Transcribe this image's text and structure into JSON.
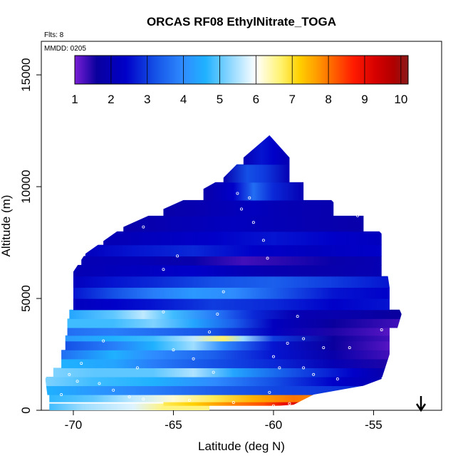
{
  "chart_data": {
    "type": "heatmap",
    "title": "ORCAS RF08 EthylNitrate_TOGA",
    "flights_note": "Flts: 8",
    "date_note": "MMDD: 0205",
    "xlabel": "Latitude (deg N)",
    "ylabel": "Altitude (m)",
    "xlim": [
      -71.6,
      -51.6
    ],
    "ylim": [
      0,
      16500
    ],
    "x_ticks": [
      "-70",
      "-65",
      "-60",
      "-55"
    ],
    "y_ticks": [
      "0",
      "5000",
      "10000",
      "15000"
    ],
    "x_tick_values": [
      -70,
      -65,
      -60,
      -55
    ],
    "y_tick_values": [
      0,
      5000,
      10000,
      15000
    ],
    "colorbar": {
      "min": 1,
      "max": 10.2,
      "ticks": [
        "1",
        "2",
        "3",
        "4",
        "5",
        "6",
        "7",
        "8",
        "9",
        "10"
      ],
      "colors": [
        "#7a1fd6",
        "#0a009e",
        "#0000c8",
        "#1450e6",
        "#2f8cff",
        "#1fb1ff",
        "#8fd8ff",
        "#ffffff",
        "#fff26b",
        "#ffd000",
        "#ff9a00",
        "#ff5a00",
        "#ff1a00",
        "#d60000",
        "#b00000",
        "#8b1a1a"
      ],
      "stops": [
        1,
        1.6,
        2.4,
        3.2,
        4.0,
        4.6,
        5.3,
        6.0,
        6.7,
        7.2,
        7.7,
        8.2,
        8.7,
        9.3,
        9.8,
        10.2
      ]
    },
    "field_envelope": [
      [
        -71.2,
        0
      ],
      [
        -71.4,
        1400
      ],
      [
        -70.6,
        2800
      ],
      [
        -70.2,
        4500
      ],
      [
        -70.0,
        6200
      ],
      [
        -69.4,
        7000
      ],
      [
        -67.5,
        8200
      ],
      [
        -64.5,
        9400
      ],
      [
        -62.5,
        10400
      ],
      [
        -61.5,
        11300
      ],
      [
        -60.2,
        12300
      ],
      [
        -58.8,
        10900
      ],
      [
        -57.0,
        9300
      ],
      [
        -55.5,
        8700
      ],
      [
        -54.6,
        7900
      ],
      [
        -54.2,
        5500
      ],
      [
        -53.6,
        4300
      ],
      [
        -54.2,
        2500
      ],
      [
        -54.6,
        1400
      ],
      [
        -55.5,
        1100
      ],
      [
        -58.0,
        700
      ],
      [
        -59.0,
        250
      ],
      [
        -63.0,
        0
      ]
    ],
    "bands": [
      {
        "y0": 0,
        "y1": 300,
        "points": [
          [
            -71.2,
            4.8
          ],
          [
            -69.5,
            5.4
          ],
          [
            -67,
            5.8
          ],
          [
            -65.5,
            6.6
          ],
          [
            -63.2,
            6.6
          ]
        ]
      },
      {
        "y0": 220,
        "y1": 380,
        "points": [
          [
            -65.5,
            6.8
          ],
          [
            -64,
            7.2
          ],
          [
            -62,
            7.9
          ],
          [
            -60.5,
            8.3
          ],
          [
            -59.5,
            9.0
          ],
          [
            -58.3,
            9.4
          ],
          [
            -57.2,
            8.3
          ]
        ]
      },
      {
        "y0": 380,
        "y1": 700,
        "points": [
          [
            -71.2,
            4.7
          ],
          [
            -69,
            5.0
          ],
          [
            -67,
            5.6
          ],
          [
            -65,
            6.2
          ],
          [
            -63,
            6.8
          ],
          [
            -61,
            7.5
          ],
          [
            -59,
            8.0
          ],
          [
            -57.5,
            7.8
          ],
          [
            -56.6,
            7.2
          ]
        ]
      },
      {
        "y0": 700,
        "y1": 1100,
        "points": [
          [
            -71.4,
            4.6
          ],
          [
            -69,
            4.2
          ],
          [
            -66,
            3.8
          ],
          [
            -63,
            3.4
          ],
          [
            -60,
            3.1
          ],
          [
            -58,
            3.0
          ],
          [
            -55.5,
            2.8
          ]
        ]
      },
      {
        "y0": 1100,
        "y1": 1500,
        "points": [
          [
            -71.4,
            5.2
          ],
          [
            -69,
            4.8
          ],
          [
            -66,
            4.6
          ],
          [
            -63,
            4.0
          ],
          [
            -60,
            3.2
          ],
          [
            -57,
            2.4
          ],
          [
            -54.6,
            2.0
          ]
        ]
      },
      {
        "y0": 1500,
        "y1": 1900,
        "points": [
          [
            -71,
            5.2
          ],
          [
            -69,
            5.0
          ],
          [
            -66,
            5.0
          ],
          [
            -64,
            5.5
          ],
          [
            -62,
            4.4
          ],
          [
            -59,
            3.2
          ],
          [
            -56,
            2.4
          ],
          [
            -54.3,
            1.8
          ]
        ]
      },
      {
        "y0": 1900,
        "y1": 2300,
        "points": [
          [
            -70.6,
            4.6
          ],
          [
            -68,
            4.4
          ],
          [
            -66,
            3.8
          ],
          [
            -63,
            3.2
          ],
          [
            -60,
            2.8
          ],
          [
            -57,
            2.0
          ],
          [
            -54.2,
            1.5
          ]
        ]
      },
      {
        "y0": 2300,
        "y1": 2700,
        "points": [
          [
            -70.6,
            3.6
          ],
          [
            -68,
            4.6
          ],
          [
            -66,
            4.0
          ],
          [
            -63,
            3.4
          ],
          [
            -60,
            2.6
          ],
          [
            -57,
            1.8
          ],
          [
            -54.2,
            1.3
          ]
        ]
      },
      {
        "y0": 2700,
        "y1": 3100,
        "points": [
          [
            -70.4,
            3.2
          ],
          [
            -68,
            3.8
          ],
          [
            -66,
            4.6
          ],
          [
            -64,
            5.4
          ],
          [
            -62.5,
            4.0
          ],
          [
            -60,
            2.6
          ],
          [
            -57,
            1.6
          ],
          [
            -54.2,
            1.2
          ]
        ]
      },
      {
        "y0": 3100,
        "y1": 3350,
        "points": [
          [
            -70.4,
            4.2
          ],
          [
            -68,
            4.6
          ],
          [
            -66,
            4.8
          ],
          [
            -64,
            5.6
          ],
          [
            -62.5,
            6.7
          ],
          [
            -61.5,
            5.4
          ],
          [
            -60,
            3.0
          ],
          [
            -57,
            1.6
          ],
          [
            -54.2,
            1.3
          ]
        ]
      },
      {
        "y0": 3350,
        "y1": 3700,
        "points": [
          [
            -70.3,
            3.6
          ],
          [
            -68,
            3.8
          ],
          [
            -66,
            3.6
          ],
          [
            -63,
            3.2
          ],
          [
            -60,
            2.2
          ],
          [
            -57,
            1.5
          ],
          [
            -54.2,
            1.2
          ]
        ]
      },
      {
        "y0": 3700,
        "y1": 4100,
        "points": [
          [
            -70.3,
            4.8
          ],
          [
            -68,
            4.8
          ],
          [
            -66,
            5.2
          ],
          [
            -64,
            4.4
          ],
          [
            -62,
            3.4
          ],
          [
            -60,
            2.2
          ],
          [
            -57,
            1.6
          ],
          [
            -53.6,
            1.3
          ]
        ]
      },
      {
        "y0": 4100,
        "y1": 4500,
        "points": [
          [
            -70.2,
            4.4
          ],
          [
            -68,
            5.0
          ],
          [
            -66.5,
            5.6
          ],
          [
            -65,
            4.8
          ],
          [
            -63,
            3.8
          ],
          [
            -61,
            2.8
          ],
          [
            -59,
            2.0
          ],
          [
            -56,
            1.8
          ],
          [
            -53.6,
            1.6
          ]
        ]
      },
      {
        "y0": 4500,
        "y1": 5000,
        "points": [
          [
            -70.0,
            2.2
          ],
          [
            -68,
            2.4
          ],
          [
            -66,
            2.6
          ],
          [
            -63,
            3.0
          ],
          [
            -60,
            2.8
          ],
          [
            -57,
            2.4
          ],
          [
            -54.2,
            2.6
          ]
        ]
      },
      {
        "y0": 5000,
        "y1": 5500,
        "points": [
          [
            -70.0,
            2.6
          ],
          [
            -68,
            3.2
          ],
          [
            -66,
            3.8
          ],
          [
            -64,
            4.2
          ],
          [
            -62,
            4.0
          ],
          [
            -60,
            3.4
          ],
          [
            -57,
            2.6
          ],
          [
            -54.2,
            2.4
          ]
        ]
      },
      {
        "y0": 5500,
        "y1": 6000,
        "points": [
          [
            -70.0,
            2.2
          ],
          [
            -68,
            2.6
          ],
          [
            -66,
            2.8
          ],
          [
            -63,
            3.2
          ],
          [
            -60,
            3.4
          ],
          [
            -57,
            3.0
          ],
          [
            -54.2,
            2.6
          ]
        ]
      },
      {
        "y0": 6000,
        "y1": 6500,
        "points": [
          [
            -70.0,
            2.0
          ],
          [
            -67,
            2.2
          ],
          [
            -64,
            2.4
          ],
          [
            -61,
            2.0
          ],
          [
            -58,
            1.8
          ],
          [
            -54.6,
            2.0
          ]
        ]
      },
      {
        "y0": 6500,
        "y1": 6900,
        "points": [
          [
            -69.6,
            2.0
          ],
          [
            -67,
            2.1
          ],
          [
            -64,
            1.8
          ],
          [
            -61.5,
            1.3
          ],
          [
            -60,
            1.4
          ],
          [
            -57,
            1.8
          ],
          [
            -54.6,
            2.0
          ]
        ]
      },
      {
        "y0": 6900,
        "y1": 7400,
        "points": [
          [
            -69.4,
            2.2
          ],
          [
            -67,
            2.6
          ],
          [
            -64,
            2.8
          ],
          [
            -61,
            2.4
          ],
          [
            -58,
            2.2
          ],
          [
            -54.6,
            2.4
          ]
        ]
      },
      {
        "y0": 7400,
        "y1": 8000,
        "points": [
          [
            -68.5,
            2.0
          ],
          [
            -66,
            2.2
          ],
          [
            -63,
            2.4
          ],
          [
            -60,
            2.6
          ],
          [
            -57,
            2.4
          ],
          [
            -54.6,
            2.2
          ]
        ]
      },
      {
        "y0": 8000,
        "y1": 8700,
        "points": [
          [
            -67.5,
            1.8
          ],
          [
            -65,
            2.0
          ],
          [
            -62,
            2.2
          ],
          [
            -59,
            2.0
          ],
          [
            -55.5,
            1.8
          ]
        ]
      },
      {
        "y0": 8700,
        "y1": 9400,
        "points": [
          [
            -65.5,
            1.8
          ],
          [
            -63,
            2.0
          ],
          [
            -61,
            2.2
          ],
          [
            -59.5,
            2.0
          ],
          [
            -57,
            1.9
          ]
        ]
      },
      {
        "y0": 9400,
        "y1": 10200,
        "points": [
          [
            -63.5,
            1.8
          ],
          [
            -62,
            2.4
          ],
          [
            -61,
            3.6
          ],
          [
            -60,
            2.8
          ],
          [
            -58.5,
            2.0
          ]
        ]
      },
      {
        "y0": 10200,
        "y1": 11000,
        "points": [
          [
            -62.5,
            1.9
          ],
          [
            -61.3,
            3.2
          ],
          [
            -60.5,
            3.0
          ],
          [
            -59.2,
            2.0
          ]
        ]
      },
      {
        "y0": 11000,
        "y1": 12400,
        "points": [
          [
            -61.5,
            2.0
          ],
          [
            -60.6,
            2.6
          ],
          [
            -60.0,
            2.4
          ],
          [
            -59.2,
            2.0
          ]
        ]
      }
    ],
    "samples": [
      [
        -70.6,
        700
      ],
      [
        -70.2,
        1600
      ],
      [
        -69.6,
        2100
      ],
      [
        -68.7,
        1200
      ],
      [
        -68.5,
        3100
      ],
      [
        -69.0,
        7700
      ],
      [
        -67.2,
        600
      ],
      [
        -66.8,
        1900
      ],
      [
        -66.5,
        8200
      ],
      [
        -65.5,
        4400
      ],
      [
        -65.5,
        6300
      ],
      [
        -64.8,
        6900
      ],
      [
        -64.0,
        2300
      ],
      [
        -63.2,
        3500
      ],
      [
        -62.8,
        4300
      ],
      [
        -62.5,
        5300
      ],
      [
        -61.8,
        9700
      ],
      [
        -61.6,
        9000
      ],
      [
        -61.0,
        8400
      ],
      [
        -61.2,
        9500
      ],
      [
        -60.5,
        7600
      ],
      [
        -60.3,
        6800
      ],
      [
        -60.0,
        2400
      ],
      [
        -59.7,
        1900
      ],
      [
        -59.3,
        3000
      ],
      [
        -58.8,
        4200
      ],
      [
        -58.5,
        3200
      ],
      [
        -58.0,
        1600
      ],
      [
        -57.5,
        2800
      ],
      [
        -56.8,
        1400
      ],
      [
        -56.2,
        2800
      ],
      [
        -55.8,
        8700
      ],
      [
        -55.2,
        8700
      ],
      [
        -54.6,
        3600
      ],
      [
        -54.2,
        7900
      ],
      [
        -54.1,
        5000
      ],
      [
        -57.5,
        400
      ],
      [
        -60.0,
        200
      ],
      [
        -59.2,
        300
      ],
      [
        -62.0,
        350
      ],
      [
        -64.2,
        450
      ],
      [
        -66.5,
        500
      ],
      [
        -68.0,
        900
      ],
      [
        -69.8,
        1300
      ],
      [
        -65.0,
        2700
      ],
      [
        -63.0,
        1700
      ],
      [
        -60.2,
        800
      ],
      [
        -58.5,
        1900
      ]
    ]
  }
}
